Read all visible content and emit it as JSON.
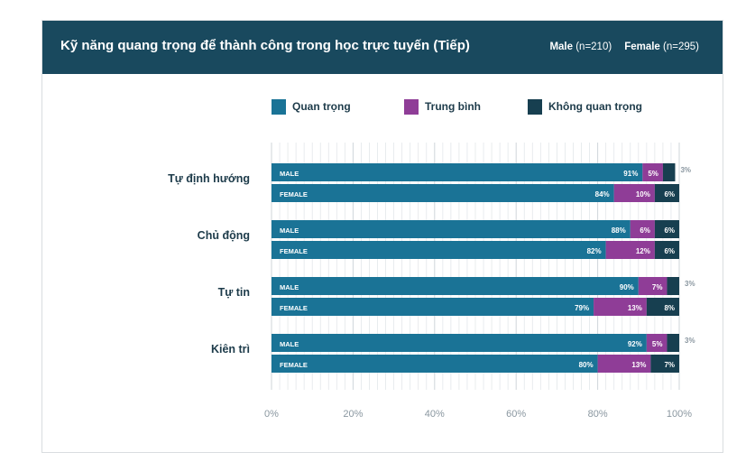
{
  "header": {
    "title": "Kỹ năng quang trọng để thành công trong học trực tuyến (Tiếp)",
    "male_label": "Male",
    "male_n": "(n=210)",
    "female_label": "Female",
    "female_n": "(n=295)"
  },
  "colors": {
    "header_bg": "#19495e",
    "important": "#1a7396",
    "medium": "#8f3d97",
    "not_important": "#173f50"
  },
  "chart_data": {
    "type": "bar",
    "orientation": "horizontal",
    "stacked": true,
    "legend": [
      "Quan trọng",
      "Trung bình",
      "Không quan trọng"
    ],
    "legend_placement": "top",
    "groups": [
      {
        "label": "Tự định hướng",
        "bars": [
          {
            "label": "MALE",
            "values": [
              91,
              5,
              3
            ],
            "value_labels": [
              "91%",
              "5%",
              "3%"
            ]
          },
          {
            "label": "FEMALE",
            "values": [
              84,
              10,
              6
            ],
            "value_labels": [
              "84%",
              "10%",
              "6%"
            ]
          }
        ]
      },
      {
        "label": "Chủ động",
        "bars": [
          {
            "label": "MALE",
            "values": [
              88,
              6,
              6
            ],
            "value_labels": [
              "88%",
              "6%",
              "6%"
            ]
          },
          {
            "label": "FEMALE",
            "values": [
              82,
              12,
              6
            ],
            "value_labels": [
              "82%",
              "12%",
              "6%"
            ]
          }
        ]
      },
      {
        "label": "Tự tin",
        "bars": [
          {
            "label": "MALE",
            "values": [
              90,
              7,
              3
            ],
            "value_labels": [
              "90%",
              "7%",
              "3%"
            ]
          },
          {
            "label": "FEMALE",
            "values": [
              79,
              13,
              8
            ],
            "value_labels": [
              "79%",
              "13%",
              "8%"
            ]
          }
        ]
      },
      {
        "label": "Kiên trì",
        "bars": [
          {
            "label": "MALE",
            "values": [
              92,
              5,
              3
            ],
            "value_labels": [
              "92%",
              "5%",
              "3%"
            ]
          },
          {
            "label": "FEMALE",
            "values": [
              80,
              13,
              7
            ],
            "value_labels": [
              "80%",
              "13%",
              "7%"
            ]
          }
        ]
      }
    ],
    "x_ticks": [
      "0%",
      "20%",
      "40%",
      "60%",
      "80%",
      "100%"
    ],
    "xlim": [
      0,
      100
    ],
    "grid": true
  }
}
